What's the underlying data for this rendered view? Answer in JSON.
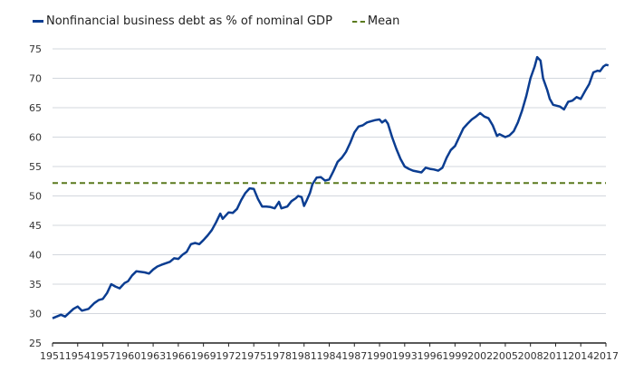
{
  "chart_data": {
    "type": "line",
    "title": "",
    "xlabel": "",
    "ylabel": "",
    "xlim": [
      1951,
      2017
    ],
    "ylim": [
      25,
      75
    ],
    "grid": true,
    "legend_placement": "top-left",
    "x_ticks": [
      "1951",
      "1954",
      "1957",
      "1960",
      "1963",
      "1966",
      "1969",
      "1972",
      "1975",
      "1978",
      "1981",
      "1984",
      "1987",
      "1990",
      "1993",
      "1996",
      "1999",
      "2002",
      "2005",
      "2008",
      "2011",
      "2014",
      "2017"
    ],
    "y_ticks": [
      "25",
      "30",
      "35",
      "40",
      "45",
      "50",
      "55",
      "60",
      "65",
      "70",
      "75"
    ],
    "series": [
      {
        "name": "Nonfinancial business debt as % of nominal GDP",
        "color": "#0b3d91",
        "x": [
          1951,
          1952,
          1952.5,
          1953.5,
          1954,
          1954.5,
          1955.3,
          1956,
          1956.5,
          1957,
          1957.5,
          1958,
          1958.5,
          1959,
          1959.6,
          1960,
          1960.5,
          1961,
          1962,
          1962.5,
          1963,
          1963.5,
          1964,
          1965,
          1965.5,
          1966,
          1966.5,
          1967,
          1967.5,
          1968,
          1968.5,
          1969,
          1969.5,
          1970,
          1970.5,
          1971,
          1971.3,
          1972,
          1972.5,
          1973,
          1973.5,
          1974,
          1974.5,
          1975,
          1975.5,
          1976,
          1976.5,
          1977,
          1977.5,
          1978,
          1978.3,
          1979,
          1979.5,
          1980,
          1980.3,
          1980.7,
          1981,
          1981.3,
          1981.7,
          1982,
          1982.5,
          1983,
          1983.5,
          1984,
          1984.5,
          1985,
          1985.5,
          1986,
          1986.5,
          1987,
          1987.5,
          1988,
          1988.5,
          1989,
          1989.5,
          1990,
          1990.3,
          1990.7,
          1991,
          1991.5,
          1992,
          1992.5,
          1993,
          1993.5,
          1994,
          1995,
          1995.5,
          1996,
          1996.5,
          1997,
          1997.5,
          1998,
          1998.5,
          1999,
          1999.5,
          2000,
          2000.5,
          2001,
          2001.5,
          2002,
          2002.5,
          2003,
          2003.5,
          2004,
          2004.3,
          2005,
          2005.5,
          2006,
          2006.5,
          2007,
          2007.5,
          2008,
          2008.5,
          2008.8,
          2009.2,
          2009.5,
          2010,
          2010.3,
          2010.7,
          2011.5,
          2012,
          2012.5,
          2013,
          2013.5,
          2014,
          2014.5,
          2015,
          2015.5,
          2016,
          2016.3,
          2016.7,
          2017,
          2017.3
        ],
        "values": [
          29.2,
          29.8,
          29.5,
          30.8,
          31.2,
          30.5,
          30.8,
          31.8,
          32.3,
          32.5,
          33.5,
          35,
          34.6,
          34.3,
          35.2,
          35.5,
          36.5,
          37.2,
          37,
          36.8,
          37.5,
          38,
          38.3,
          38.8,
          39.4,
          39.3,
          40,
          40.5,
          41.8,
          42,
          41.8,
          42.5,
          43.3,
          44.2,
          45.5,
          47,
          46.1,
          47.2,
          47.1,
          47.8,
          49.3,
          50.5,
          51.3,
          51.2,
          49.5,
          48.2,
          48.2,
          48.1,
          47.9,
          49,
          47.9,
          48.2,
          49.1,
          49.6,
          50,
          49.8,
          48.3,
          49.2,
          50.5,
          52,
          53.1,
          53.2,
          52.6,
          52.8,
          54.2,
          55.8,
          56.5,
          57.5,
          59,
          60.8,
          61.8,
          62,
          62.5,
          62.7,
          62.9,
          63,
          62.5,
          62.9,
          62.3,
          60,
          58,
          56.3,
          55,
          54.6,
          54.3,
          54,
          54.8,
          54.6,
          54.5,
          54.3,
          54.8,
          56.5,
          57.8,
          58.5,
          60,
          61.5,
          62.3,
          63,
          63.5,
          64.1,
          63.5,
          63.2,
          62,
          60.2,
          60.5,
          60,
          60.3,
          61,
          62.5,
          64.5,
          67,
          70,
          72,
          73.6,
          73,
          70,
          68,
          66.5,
          65.5,
          65.2,
          64.7,
          66,
          66.2,
          66.8,
          66.5,
          67.8,
          69,
          71,
          71.3,
          71.2,
          72,
          72.3,
          72.2
        ]
      },
      {
        "name": "Mean",
        "color": "#5a7a1e",
        "style": "dashed",
        "constant": 52.2
      }
    ]
  }
}
